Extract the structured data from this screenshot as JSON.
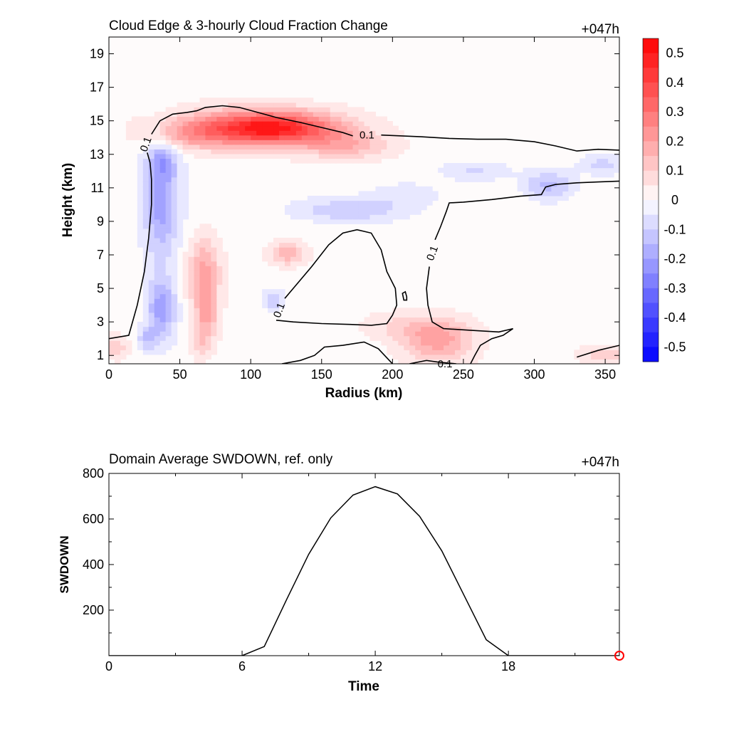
{
  "chart_data": [
    {
      "type": "heatmap",
      "title": "Cloud Edge & 3-hourly Cloud Fraction Change",
      "time_label": "+047h",
      "xlabel": "Radius (km)",
      "ylabel": "Height (km)",
      "xlim": [
        0,
        360
      ],
      "ylim": [
        0.5,
        20
      ],
      "xticks": [
        "0",
        "50",
        "100",
        "150",
        "200",
        "250",
        "300",
        "350"
      ],
      "xtick_values": [
        0,
        50,
        100,
        150,
        200,
        250,
        300,
        350
      ],
      "yticks": [
        "1",
        "3",
        "5",
        "7",
        "9",
        "11",
        "13",
        "15",
        "17",
        "19"
      ],
      "ytick_values": [
        1,
        3,
        5,
        7,
        9,
        11,
        13,
        15,
        17,
        19
      ],
      "colorbar": {
        "labels": [
          "0.5",
          "0.4",
          "0.3",
          "0.2",
          "0.1",
          "0",
          "-0.1",
          "-0.2",
          "-0.3",
          "-0.4",
          "-0.5"
        ],
        "values": [
          0.5,
          0.4,
          0.3,
          0.2,
          0.1,
          0,
          -0.1,
          -0.2,
          -0.3,
          -0.4,
          -0.5
        ],
        "range": [
          -0.55,
          0.55
        ],
        "positive_color": "#ff0000",
        "negative_color": "#0000ff"
      },
      "anomalies": [
        {
          "x": 115,
          "y": 14.6,
          "sx": 34,
          "sy": 0.7,
          "amp": 0.42
        },
        {
          "x": 90,
          "y": 14.5,
          "sx": 40,
          "sy": 0.9,
          "amp": 0.12
        },
        {
          "x": 168,
          "y": 13.5,
          "sx": 22,
          "sy": 0.6,
          "amp": 0.14
        },
        {
          "x": 55,
          "y": 14.2,
          "sx": 18,
          "sy": 0.6,
          "amp": 0.1
        },
        {
          "x": 37,
          "y": 10.2,
          "sx": 9,
          "sy": 2.4,
          "amp": -0.2
        },
        {
          "x": 38,
          "y": 12.6,
          "sx": 7,
          "sy": 0.7,
          "amp": -0.12
        },
        {
          "x": 37,
          "y": 3.8,
          "sx": 7,
          "sy": 1.3,
          "amp": -0.2
        },
        {
          "x": 27,
          "y": 2.0,
          "sx": 5,
          "sy": 0.5,
          "amp": -0.12
        },
        {
          "x": 67,
          "y": 5.9,
          "sx": 8,
          "sy": 1.5,
          "amp": 0.2
        },
        {
          "x": 69,
          "y": 3.2,
          "sx": 6,
          "sy": 1.0,
          "amp": 0.14
        },
        {
          "x": 65,
          "y": 1.8,
          "sx": 5,
          "sy": 0.8,
          "amp": 0.08
        },
        {
          "x": 5,
          "y": 1.5,
          "sx": 6,
          "sy": 0.5,
          "amp": 0.12
        },
        {
          "x": 126,
          "y": 7.1,
          "sx": 9,
          "sy": 0.5,
          "amp": 0.16
        },
        {
          "x": 116,
          "y": 4.3,
          "sx": 5,
          "sy": 0.4,
          "amp": -0.12
        },
        {
          "x": 170,
          "y": 9.7,
          "sx": 26,
          "sy": 0.5,
          "amp": -0.12
        },
        {
          "x": 210,
          "y": 10.6,
          "sx": 16,
          "sy": 0.5,
          "amp": -0.06
        },
        {
          "x": 232,
          "y": 1.9,
          "sx": 18,
          "sy": 0.9,
          "amp": 0.2
        },
        {
          "x": 208,
          "y": 2.8,
          "sx": 22,
          "sy": 0.6,
          "amp": 0.07
        },
        {
          "x": 310,
          "y": 11.2,
          "sx": 12,
          "sy": 0.6,
          "amp": -0.14
        },
        {
          "x": 258,
          "y": 12.0,
          "sx": 16,
          "sy": 0.4,
          "amp": -0.08
        },
        {
          "x": 348,
          "y": 12.4,
          "sx": 10,
          "sy": 0.4,
          "amp": -0.1
        },
        {
          "x": 350,
          "y": 1.0,
          "sx": 14,
          "sy": 0.4,
          "amp": 0.1
        }
      ],
      "contour_level": "0.1",
      "contours": [
        {
          "points": [
            [
              0,
              2.0
            ],
            [
              14,
              2.2
            ],
            [
              20,
              4
            ],
            [
              25,
              6
            ],
            [
              28,
              8
            ],
            [
              30,
              10
            ],
            [
              30,
              11.5
            ],
            [
              29,
              12.5
            ],
            [
              27,
              13.1
            ]
          ]
        },
        {
          "points": [
            [
              30,
              14.2
            ],
            [
              36,
              15.0
            ],
            [
              45,
              15.4
            ],
            [
              55,
              15.5
            ],
            [
              62,
              15.6
            ],
            [
              68,
              15.8
            ],
            [
              80,
              15.9
            ],
            [
              92,
              15.8
            ],
            [
              105,
              15.5
            ],
            [
              118,
              15.2
            ],
            [
              135,
              14.9
            ],
            [
              150,
              14.6
            ],
            [
              165,
              14.3
            ],
            [
              172,
              14.1
            ]
          ]
        },
        {
          "points": [
            [
              192,
              14.15
            ],
            [
              220,
              14.05
            ],
            [
              240,
              13.95
            ],
            [
              260,
              13.9
            ],
            [
              280,
              13.9
            ],
            [
              300,
              13.75
            ],
            [
              315,
              13.5
            ],
            [
              330,
              13.2
            ],
            [
              345,
              13.3
            ],
            [
              360,
              13.25
            ]
          ]
        },
        {
          "points": [
            [
              360,
              11.4
            ],
            [
              345,
              11.35
            ],
            [
              330,
              11.3
            ],
            [
              315,
              11.2
            ],
            [
              308,
              11.05
            ],
            [
              305,
              10.6
            ],
            [
              290,
              10.5
            ],
            [
              270,
              10.3
            ],
            [
              250,
              10.15
            ],
            [
              240,
              10.1
            ],
            [
              238,
              9.6
            ],
            [
              234,
              8.7
            ],
            [
              230,
              7.9
            ]
          ]
        },
        {
          "points": [
            [
              226,
              6.3
            ],
            [
              224,
              5.0
            ],
            [
              225,
              4.0
            ],
            [
              228,
              3.0
            ],
            [
              236,
              2.6
            ],
            [
              255,
              2.5
            ],
            [
              275,
              2.4
            ],
            [
              285,
              2.6
            ],
            [
              278,
              2.2
            ],
            [
              270,
              2.0
            ],
            [
              262,
              1.6
            ],
            [
              258,
              1.0
            ],
            [
              255,
              0.5
            ]
          ]
        },
        {
          "points": [
            [
              245,
              0.5
            ],
            [
              232,
              0.6
            ],
            [
              224,
              0.7
            ],
            [
              212,
              0.5
            ]
          ]
        },
        {
          "points": [
            [
              200,
              0.5
            ],
            [
              190,
              1.4
            ],
            [
              180,
              1.8
            ],
            [
              165,
              1.6
            ],
            [
              152,
              1.5
            ],
            [
              145,
              1.0
            ],
            [
              135,
              0.7
            ],
            [
              122,
              0.5
            ]
          ]
        },
        {
          "points": [
            [
              118,
              3.1
            ],
            [
              130,
              3.0
            ],
            [
              150,
              2.9
            ],
            [
              170,
              2.85
            ],
            [
              185,
              2.8
            ],
            [
              196,
              2.9
            ],
            [
              200,
              3.4
            ],
            [
              203,
              4.0
            ],
            [
              202,
              5.0
            ],
            [
              196,
              6.0
            ],
            [
              192,
              7.3
            ],
            [
              185,
              8.3
            ],
            [
              175,
              8.5
            ],
            [
              165,
              8.3
            ],
            [
              155,
              7.6
            ],
            [
              143,
              6.3
            ],
            [
              130,
              5.0
            ],
            [
              124,
              4.4
            ]
          ]
        },
        {
          "points": [
            [
              210,
              4.5
            ],
            [
              209,
              4.8
            ],
            [
              207,
              4.7
            ],
            [
              208,
              4.3
            ],
            [
              210,
              4.3
            ],
            [
              210,
              4.5
            ]
          ]
        },
        {
          "points": [
            [
              330,
              0.9
            ],
            [
              345,
              1.3
            ],
            [
              360,
              1.6
            ]
          ]
        }
      ],
      "contour_labels": [
        {
          "x": 26,
          "y": 13.6,
          "text": "0.1",
          "angle": -70
        },
        {
          "x": 182,
          "y": 14.15,
          "text": "0.1",
          "angle": 0
        },
        {
          "x": 228,
          "y": 7.1,
          "text": "0.1",
          "angle": -70
        },
        {
          "x": 120,
          "y": 3.7,
          "text": "0.1",
          "angle": -70
        },
        {
          "x": 237,
          "y": 0.5,
          "text": "0.1",
          "angle": 0
        }
      ]
    },
    {
      "type": "line",
      "title": "Domain Average SWDOWN, ref. only",
      "time_label": "+047h",
      "xlabel": "Time",
      "ylabel": "SWDOWN",
      "xlim": [
        0,
        23
      ],
      "ylim": [
        0,
        800
      ],
      "xticks": [
        "0",
        "6",
        "12",
        "18"
      ],
      "xtick_values": [
        0,
        6,
        12,
        18
      ],
      "yticks": [
        "200",
        "400",
        "600",
        "800"
      ],
      "ytick_values": [
        200,
        400,
        600,
        800
      ],
      "x": [
        0,
        1,
        2,
        3,
        4,
        5,
        6,
        7,
        8,
        9,
        10,
        11,
        12,
        13,
        14,
        15,
        16,
        17,
        18,
        19,
        20,
        21,
        22,
        23
      ],
      "values": [
        0,
        0,
        0,
        0,
        0,
        0,
        0,
        40,
        245,
        445,
        605,
        705,
        742,
        710,
        612,
        460,
        265,
        70,
        0,
        0,
        0,
        0,
        0,
        0
      ],
      "line_color": "#000000",
      "marker": {
        "x": 23,
        "y": 0,
        "color": "#ff0000"
      }
    }
  ]
}
